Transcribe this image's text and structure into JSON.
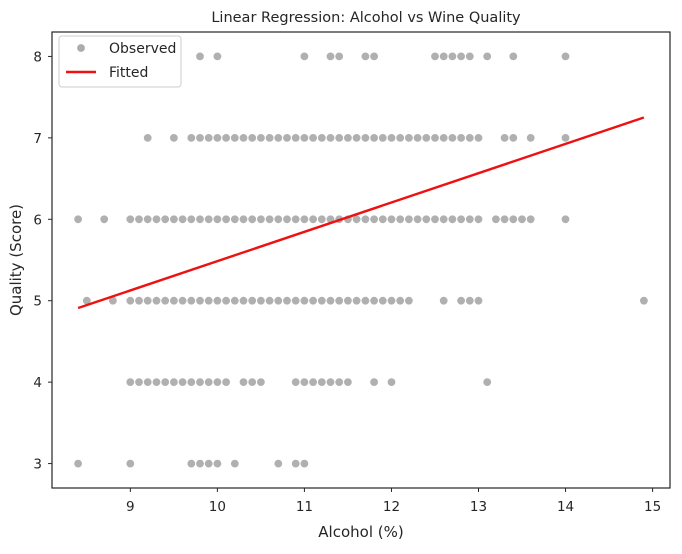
{
  "chart_data": {
    "type": "scatter",
    "title": "Linear Regression: Alcohol vs Wine Quality",
    "xlabel": "Alcohol (%)",
    "ylabel": "Quality (Score)",
    "xlim": [
      8.1,
      15.2
    ],
    "ylim": [
      2.7,
      8.3
    ],
    "xticks": [
      9,
      10,
      11,
      12,
      13,
      14,
      15
    ],
    "yticks": [
      3,
      4,
      5,
      6,
      7,
      8
    ],
    "grid": false,
    "legend_position": "top-left",
    "colors": {
      "points": "#808080",
      "fit_line": "#ee1111",
      "axes": "#262626",
      "background": "#ffffff"
    },
    "series": [
      {
        "name": "Observed",
        "type": "scatter",
        "points": [
          [
            8.4,
            3
          ],
          [
            9.0,
            3
          ],
          [
            9.7,
            3
          ],
          [
            9.8,
            3
          ],
          [
            9.9,
            3
          ],
          [
            10.0,
            3
          ],
          [
            10.2,
            3
          ],
          [
            10.7,
            3
          ],
          [
            10.9,
            3
          ],
          [
            11.0,
            3
          ],
          [
            9.0,
            4
          ],
          [
            9.1,
            4
          ],
          [
            9.2,
            4
          ],
          [
            9.3,
            4
          ],
          [
            9.4,
            4
          ],
          [
            9.5,
            4
          ],
          [
            9.6,
            4
          ],
          [
            9.7,
            4
          ],
          [
            9.8,
            4
          ],
          [
            9.9,
            4
          ],
          [
            10.0,
            4
          ],
          [
            10.1,
            4
          ],
          [
            10.3,
            4
          ],
          [
            10.4,
            4
          ],
          [
            10.5,
            4
          ],
          [
            10.9,
            4
          ],
          [
            11.0,
            4
          ],
          [
            11.1,
            4
          ],
          [
            11.2,
            4
          ],
          [
            11.3,
            4
          ],
          [
            11.4,
            4
          ],
          [
            11.5,
            4
          ],
          [
            11.8,
            4
          ],
          [
            12.0,
            4
          ],
          [
            13.1,
            4
          ],
          [
            8.5,
            5
          ],
          [
            8.8,
            5
          ],
          [
            9.0,
            5
          ],
          [
            9.1,
            5
          ],
          [
            9.2,
            5
          ],
          [
            9.3,
            5
          ],
          [
            9.4,
            5
          ],
          [
            9.5,
            5
          ],
          [
            9.6,
            5
          ],
          [
            9.7,
            5
          ],
          [
            9.8,
            5
          ],
          [
            9.9,
            5
          ],
          [
            10.0,
            5
          ],
          [
            10.1,
            5
          ],
          [
            10.2,
            5
          ],
          [
            10.3,
            5
          ],
          [
            10.4,
            5
          ],
          [
            10.5,
            5
          ],
          [
            10.6,
            5
          ],
          [
            10.7,
            5
          ],
          [
            10.8,
            5
          ],
          [
            10.9,
            5
          ],
          [
            11.0,
            5
          ],
          [
            11.1,
            5
          ],
          [
            11.2,
            5
          ],
          [
            11.3,
            5
          ],
          [
            11.4,
            5
          ],
          [
            11.5,
            5
          ],
          [
            11.6,
            5
          ],
          [
            11.7,
            5
          ],
          [
            11.8,
            5
          ],
          [
            11.9,
            5
          ],
          [
            12.0,
            5
          ],
          [
            12.1,
            5
          ],
          [
            12.2,
            5
          ],
          [
            12.6,
            5
          ],
          [
            12.8,
            5
          ],
          [
            12.9,
            5
          ],
          [
            13.0,
            5
          ],
          [
            14.9,
            5
          ],
          [
            8.4,
            6
          ],
          [
            8.7,
            6
          ],
          [
            9.0,
            6
          ],
          [
            9.1,
            6
          ],
          [
            9.2,
            6
          ],
          [
            9.3,
            6
          ],
          [
            9.4,
            6
          ],
          [
            9.5,
            6
          ],
          [
            9.6,
            6
          ],
          [
            9.7,
            6
          ],
          [
            9.8,
            6
          ],
          [
            9.9,
            6
          ],
          [
            10.0,
            6
          ],
          [
            10.1,
            6
          ],
          [
            10.2,
            6
          ],
          [
            10.3,
            6
          ],
          [
            10.4,
            6
          ],
          [
            10.5,
            6
          ],
          [
            10.6,
            6
          ],
          [
            10.7,
            6
          ],
          [
            10.8,
            6
          ],
          [
            10.9,
            6
          ],
          [
            11.0,
            6
          ],
          [
            11.1,
            6
          ],
          [
            11.2,
            6
          ],
          [
            11.3,
            6
          ],
          [
            11.4,
            6
          ],
          [
            11.5,
            6
          ],
          [
            11.6,
            6
          ],
          [
            11.7,
            6
          ],
          [
            11.8,
            6
          ],
          [
            11.9,
            6
          ],
          [
            12.0,
            6
          ],
          [
            12.1,
            6
          ],
          [
            12.2,
            6
          ],
          [
            12.3,
            6
          ],
          [
            12.4,
            6
          ],
          [
            12.5,
            6
          ],
          [
            12.6,
            6
          ],
          [
            12.7,
            6
          ],
          [
            12.8,
            6
          ],
          [
            12.9,
            6
          ],
          [
            13.0,
            6
          ],
          [
            13.2,
            6
          ],
          [
            13.3,
            6
          ],
          [
            13.4,
            6
          ],
          [
            13.5,
            6
          ],
          [
            13.6,
            6
          ],
          [
            14.0,
            6
          ],
          [
            9.2,
            7
          ],
          [
            9.5,
            7
          ],
          [
            9.7,
            7
          ],
          [
            9.8,
            7
          ],
          [
            9.9,
            7
          ],
          [
            10.0,
            7
          ],
          [
            10.1,
            7
          ],
          [
            10.2,
            7
          ],
          [
            10.3,
            7
          ],
          [
            10.4,
            7
          ],
          [
            10.5,
            7
          ],
          [
            10.6,
            7
          ],
          [
            10.7,
            7
          ],
          [
            10.8,
            7
          ],
          [
            10.9,
            7
          ],
          [
            11.0,
            7
          ],
          [
            11.1,
            7
          ],
          [
            11.2,
            7
          ],
          [
            11.3,
            7
          ],
          [
            11.4,
            7
          ],
          [
            11.5,
            7
          ],
          [
            11.6,
            7
          ],
          [
            11.7,
            7
          ],
          [
            11.8,
            7
          ],
          [
            11.9,
            7
          ],
          [
            12.0,
            7
          ],
          [
            12.1,
            7
          ],
          [
            12.2,
            7
          ],
          [
            12.3,
            7
          ],
          [
            12.4,
            7
          ],
          [
            12.5,
            7
          ],
          [
            12.6,
            7
          ],
          [
            12.7,
            7
          ],
          [
            12.8,
            7
          ],
          [
            12.9,
            7
          ],
          [
            13.0,
            7
          ],
          [
            13.3,
            7
          ],
          [
            13.4,
            7
          ],
          [
            13.6,
            7
          ],
          [
            14.0,
            7
          ],
          [
            9.8,
            8
          ],
          [
            10.0,
            8
          ],
          [
            11.0,
            8
          ],
          [
            11.3,
            8
          ],
          [
            11.4,
            8
          ],
          [
            11.7,
            8
          ],
          [
            11.8,
            8
          ],
          [
            12.5,
            8
          ],
          [
            12.6,
            8
          ],
          [
            12.7,
            8
          ],
          [
            12.8,
            8
          ],
          [
            12.9,
            8
          ],
          [
            13.1,
            8
          ],
          [
            13.4,
            8
          ],
          [
            14.0,
            8
          ]
        ]
      },
      {
        "name": "Fitted",
        "type": "line",
        "points": [
          [
            8.4,
            4.91
          ],
          [
            14.9,
            7.25
          ]
        ]
      }
    ]
  }
}
